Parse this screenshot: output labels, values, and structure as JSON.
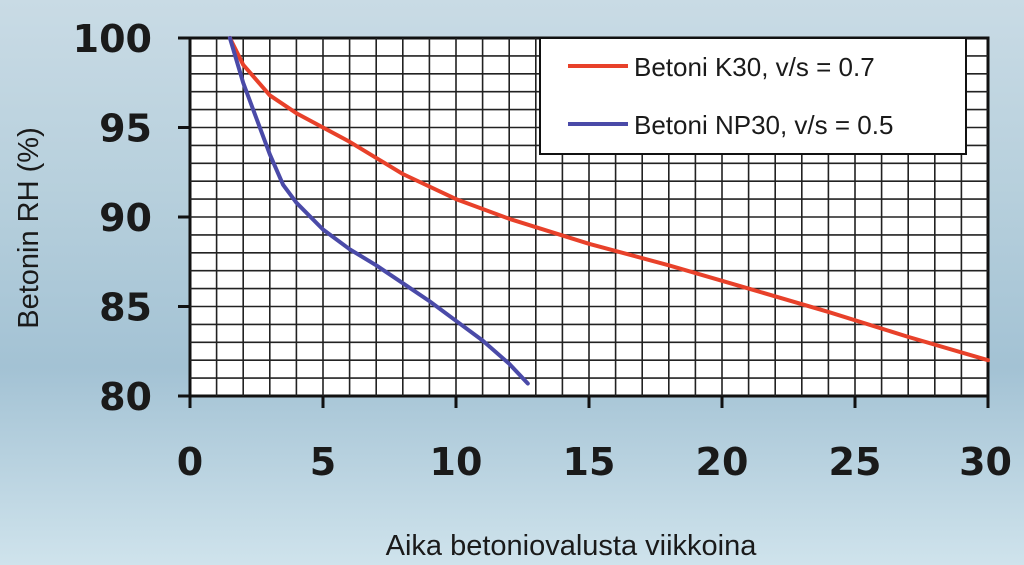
{
  "chart_data": {
    "type": "line",
    "title": "",
    "xlabel": "Aika betoniovalusta viikkoina",
    "ylabel": "Betonin RH (%)",
    "xlim": [
      0,
      30
    ],
    "ylim": [
      80,
      100
    ],
    "x_ticks": [
      0,
      5,
      10,
      15,
      20,
      25,
      30
    ],
    "y_ticks": [
      80,
      85,
      90,
      95,
      100
    ],
    "grid": true,
    "legend_position": "top-right",
    "series": [
      {
        "name": "Betoni K30, v/s = 0.7",
        "color": "#e8412a",
        "x": [
          1.5,
          2,
          3,
          4,
          5,
          6,
          8,
          10,
          12,
          15,
          18,
          21,
          24,
          27,
          30
        ],
        "y": [
          100,
          98.5,
          96.8,
          95.8,
          95.0,
          94.2,
          92.4,
          91.0,
          89.9,
          88.5,
          87.3,
          86.0,
          84.7,
          83.3,
          82.0
        ]
      },
      {
        "name": "Betoni NP30, v/s = 0.5",
        "color": "#4a4aa8",
        "x": [
          1.5,
          2,
          2.5,
          3,
          3.5,
          4,
          5,
          6,
          7,
          8,
          9,
          10,
          11,
          12,
          12.7
        ],
        "y": [
          100,
          97.5,
          95.5,
          93.5,
          91.8,
          90.8,
          89.3,
          88.2,
          87.3,
          86.3,
          85.3,
          84.2,
          83.1,
          81.8,
          80.7
        ]
      }
    ]
  }
}
